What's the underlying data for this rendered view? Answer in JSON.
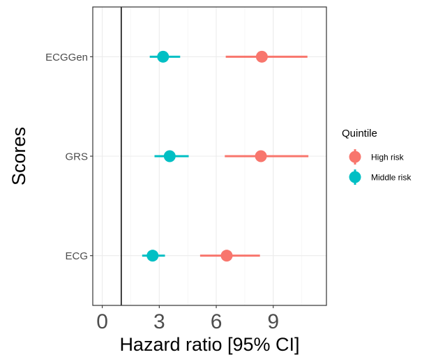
{
  "chart_data": {
    "type": "scatter",
    "subtype": "forest-plot",
    "xlabel": "Hazard ratio [95% CI]",
    "ylabel": "Scores",
    "xlim": [
      -0.5,
      11.8
    ],
    "xticks": [
      0,
      3,
      6,
      9
    ],
    "reference_line": 1,
    "grid": true,
    "categories": [
      "ECGGen",
      "GRS",
      "ECG"
    ],
    "legend": {
      "title": "Quintile",
      "placement": "right",
      "entries": [
        "High risk",
        "Middle risk"
      ]
    },
    "series": [
      {
        "name": "High risk",
        "color": "#F8766D",
        "points": [
          {
            "category": "ECGGen",
            "hr": 8.4,
            "lo": 6.5,
            "hi": 10.8
          },
          {
            "category": "GRS",
            "hr": 8.35,
            "lo": 6.45,
            "hi": 10.85
          },
          {
            "category": "ECG",
            "hr": 6.55,
            "lo": 5.15,
            "hi": 8.3
          }
        ]
      },
      {
        "name": "Middle risk",
        "color": "#00BFC4",
        "points": [
          {
            "category": "ECGGen",
            "hr": 3.2,
            "lo": 2.5,
            "hi": 4.1
          },
          {
            "category": "GRS",
            "hr": 3.55,
            "lo": 2.75,
            "hi": 4.55
          },
          {
            "category": "ECG",
            "hr": 2.65,
            "lo": 2.1,
            "hi": 3.3
          }
        ]
      }
    ]
  }
}
